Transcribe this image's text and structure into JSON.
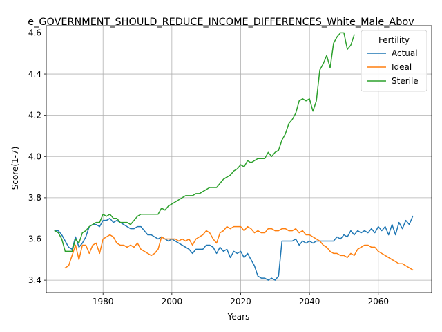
{
  "chart_data": {
    "type": "line",
    "title": "e_GOVERNMENT_SHOULD_REDUCE_INCOME_DIFFERENCES_White_Male_Abov",
    "xlabel": "Years",
    "ylabel": "Score(1-7)",
    "xlim": [
      1963.5,
      2075.5
    ],
    "ylim": [
      3.34,
      4.635
    ],
    "xticks": [
      1980,
      2000,
      2020,
      2040,
      2060
    ],
    "yticks": [
      3.4,
      3.6,
      3.8,
      4.0,
      4.2,
      4.4,
      4.6
    ],
    "grid": true,
    "legend": {
      "title": "Fertility",
      "placement": "upper right"
    },
    "series": [
      {
        "name": "Actual",
        "color": "#1f77b4",
        "x": [
          1966,
          1967,
          1968,
          1969,
          1970,
          1971,
          1972,
          1973,
          1974,
          1975,
          1976,
          1977,
          1978,
          1979,
          1980,
          1981,
          1982,
          1983,
          1984,
          1985,
          1986,
          1987,
          1988,
          1989,
          1990,
          1991,
          1992,
          1993,
          1994,
          1995,
          1996,
          1997,
          1998,
          1999,
          2000,
          2001,
          2002,
          2003,
          2004,
          2005,
          2006,
          2007,
          2008,
          2009,
          2010,
          2011,
          2012,
          2013,
          2014,
          2015,
          2016,
          2017,
          2018,
          2019,
          2020,
          2021,
          2022,
          2023,
          2024,
          2025,
          2026,
          2027,
          2028,
          2029,
          2030,
          2031,
          2032,
          2033,
          2034,
          2035,
          2036,
          2037,
          2038,
          2039,
          2040,
          2041,
          2042,
          2043,
          2044,
          2045,
          2046,
          2047,
          2048,
          2049,
          2050,
          2051,
          2052,
          2053,
          2054,
          2055,
          2056,
          2057,
          2058,
          2059,
          2060,
          2061,
          2062,
          2063,
          2064,
          2065,
          2066,
          2067,
          2068,
          2069,
          2070
        ],
        "values": [
          3.64,
          3.64,
          3.62,
          3.59,
          3.56,
          3.55,
          3.61,
          3.56,
          3.58,
          3.61,
          3.66,
          3.67,
          3.67,
          3.66,
          3.69,
          3.69,
          3.7,
          3.68,
          3.69,
          3.68,
          3.67,
          3.66,
          3.65,
          3.65,
          3.66,
          3.66,
          3.64,
          3.62,
          3.62,
          3.61,
          3.6,
          3.61,
          3.6,
          3.59,
          3.6,
          3.59,
          3.58,
          3.57,
          3.56,
          3.55,
          3.53,
          3.55,
          3.55,
          3.55,
          3.57,
          3.57,
          3.56,
          3.53,
          3.56,
          3.54,
          3.55,
          3.51,
          3.54,
          3.53,
          3.54,
          3.51,
          3.53,
          3.5,
          3.47,
          3.42,
          3.41,
          3.41,
          3.4,
          3.41,
          3.4,
          3.42,
          3.59,
          3.59,
          3.59,
          3.59,
          3.6,
          3.57,
          3.59,
          3.58,
          3.59,
          3.58,
          3.59,
          3.59,
          3.59,
          3.59,
          3.59,
          3.59,
          3.61,
          3.6,
          3.62,
          3.61,
          3.64,
          3.62,
          3.64,
          3.63,
          3.64,
          3.63,
          3.65,
          3.63,
          3.66,
          3.64,
          3.66,
          3.62,
          3.67,
          3.62,
          3.68,
          3.65,
          3.69,
          3.67,
          3.71
        ]
      },
      {
        "name": "Ideal",
        "color": "#ff7f0e",
        "x": [
          1969,
          1970,
          1971,
          1972,
          1973,
          1974,
          1975,
          1976,
          1977,
          1978,
          1979,
          1980,
          1981,
          1982,
          1983,
          1984,
          1985,
          1986,
          1987,
          1988,
          1989,
          1990,
          1991,
          1992,
          1993,
          1994,
          1995,
          1996,
          1997,
          1998,
          1999,
          2000,
          2001,
          2002,
          2003,
          2004,
          2005,
          2006,
          2007,
          2008,
          2009,
          2010,
          2011,
          2012,
          2013,
          2014,
          2015,
          2016,
          2017,
          2018,
          2019,
          2020,
          2021,
          2022,
          2023,
          2024,
          2025,
          2026,
          2027,
          2028,
          2029,
          2030,
          2031,
          2032,
          2033,
          2034,
          2035,
          2036,
          2037,
          2038,
          2039,
          2040,
          2041,
          2042,
          2043,
          2044,
          2045,
          2046,
          2047,
          2048,
          2049,
          2050,
          2051,
          2052,
          2053,
          2054,
          2055,
          2056,
          2057,
          2058,
          2059,
          2060,
          2061,
          2062,
          2063,
          2064,
          2065,
          2066,
          2067,
          2068,
          2069,
          2070
        ],
        "values": [
          3.46,
          3.47,
          3.52,
          3.57,
          3.5,
          3.57,
          3.57,
          3.53,
          3.57,
          3.58,
          3.53,
          3.6,
          3.61,
          3.62,
          3.61,
          3.58,
          3.57,
          3.57,
          3.56,
          3.57,
          3.56,
          3.58,
          3.55,
          3.54,
          3.53,
          3.52,
          3.53,
          3.55,
          3.61,
          3.6,
          3.6,
          3.6,
          3.6,
          3.59,
          3.6,
          3.59,
          3.6,
          3.57,
          3.6,
          3.61,
          3.62,
          3.64,
          3.63,
          3.6,
          3.58,
          3.63,
          3.64,
          3.66,
          3.65,
          3.66,
          3.66,
          3.66,
          3.64,
          3.66,
          3.65,
          3.63,
          3.64,
          3.63,
          3.63,
          3.65,
          3.65,
          3.64,
          3.64,
          3.65,
          3.65,
          3.64,
          3.64,
          3.65,
          3.63,
          3.64,
          3.62,
          3.62,
          3.61,
          3.6,
          3.59,
          3.57,
          3.56,
          3.54,
          3.53,
          3.53,
          3.52,
          3.52,
          3.51,
          3.53,
          3.52,
          3.55,
          3.56,
          3.57,
          3.57,
          3.56,
          3.56,
          3.54,
          3.53,
          3.52,
          3.51,
          3.5,
          3.49,
          3.48,
          3.48,
          3.47,
          3.46,
          3.45
        ]
      },
      {
        "name": "Sterile",
        "color": "#2ca02c",
        "x": [
          1966,
          1967,
          1968,
          1969,
          1970,
          1971,
          1972,
          1973,
          1974,
          1975,
          1976,
          1977,
          1978,
          1979,
          1980,
          1981,
          1982,
          1983,
          1984,
          1985,
          1986,
          1987,
          1988,
          1989,
          1990,
          1991,
          1992,
          1993,
          1994,
          1995,
          1996,
          1997,
          1998,
          1999,
          2000,
          2001,
          2002,
          2003,
          2004,
          2005,
          2006,
          2007,
          2008,
          2009,
          2010,
          2011,
          2012,
          2013,
          2014,
          2015,
          2016,
          2017,
          2018,
          2019,
          2020,
          2021,
          2022,
          2023,
          2024,
          2025,
          2026,
          2027,
          2028,
          2029,
          2030,
          2031,
          2032,
          2033,
          2034,
          2035,
          2036,
          2037,
          2038,
          2039,
          2040,
          2041,
          2042,
          2043,
          2044,
          2045,
          2046,
          2047,
          2048,
          2049,
          2050,
          2051,
          2052,
          2053
        ],
        "values": [
          3.64,
          3.63,
          3.6,
          3.54,
          3.54,
          3.54,
          3.6,
          3.58,
          3.63,
          3.64,
          3.66,
          3.67,
          3.68,
          3.68,
          3.72,
          3.71,
          3.72,
          3.7,
          3.7,
          3.68,
          3.68,
          3.68,
          3.67,
          3.69,
          3.71,
          3.72,
          3.72,
          3.72,
          3.72,
          3.72,
          3.72,
          3.75,
          3.74,
          3.76,
          3.77,
          3.78,
          3.79,
          3.8,
          3.81,
          3.81,
          3.81,
          3.82,
          3.82,
          3.83,
          3.84,
          3.85,
          3.85,
          3.85,
          3.87,
          3.89,
          3.9,
          3.91,
          3.93,
          3.94,
          3.96,
          3.95,
          3.98,
          3.97,
          3.98,
          3.99,
          3.99,
          3.99,
          4.02,
          4.0,
          4.02,
          4.03,
          4.08,
          4.11,
          4.16,
          4.18,
          4.21,
          4.27,
          4.28,
          4.27,
          4.28,
          4.22,
          4.27,
          4.42,
          4.45,
          4.49,
          4.43,
          4.55,
          4.58,
          4.6,
          4.6,
          4.52,
          4.54,
          4.59
        ]
      }
    ]
  }
}
